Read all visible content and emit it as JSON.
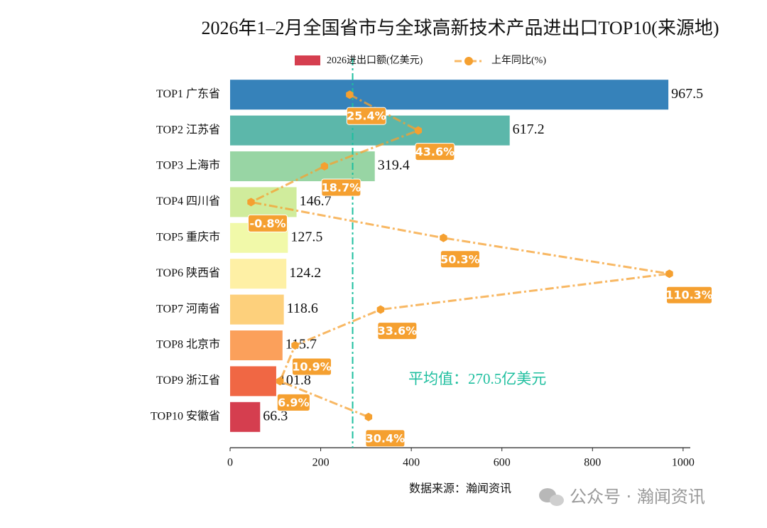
{
  "chart_data": {
    "type": "bar",
    "orientation": "horizontal",
    "title": "2026年1–2月全国省市与全球高新技术产品进出口TOP10(来源地)",
    "categories": [
      "TOP1 广东省",
      "TOP2 江苏省",
      "TOP3 上海市",
      "TOP4 四川省",
      "TOP5 重庆市",
      "TOP6 陕西省",
      "TOP7 河南省",
      "TOP8 北京市",
      "TOP9 浙江省",
      "TOP10 安徽省"
    ],
    "series": [
      {
        "name": "2026进出口额(亿美元)",
        "type": "bar",
        "color": "#d53e4f",
        "colors": [
          "#3682ba",
          "#5cb7aa",
          "#98d5a4",
          "#d0ec9c",
          "#f1f9a9",
          "#fef0a5",
          "#fdd07c",
          "#fba05b",
          "#f06744",
          "#d53e4f"
        ],
        "values": [
          967.5,
          617.2,
          319.4,
          146.7,
          127.5,
          124.2,
          118.6,
          115.7,
          101.8,
          66.3
        ]
      },
      {
        "name": "上年同比(%)",
        "type": "line",
        "axis": "x2",
        "color": "#f5a030",
        "values": [
          25.4,
          43.6,
          18.7,
          -0.8,
          50.3,
          110.3,
          33.6,
          10.9,
          6.9,
          30.4
        ],
        "value_labels": [
          "25.4%",
          "43.6%",
          "18.7%",
          "-0.8%",
          "50.3%",
          "110.3%",
          "33.6%",
          "10.9%",
          "6.9%",
          "30.4%"
        ]
      }
    ],
    "xlim": [
      0,
      1015.9
    ],
    "xticks": [
      0,
      200,
      400,
      600,
      800,
      1000
    ],
    "x2lim": [
      -6.36,
      115.86
    ],
    "average": 270.5,
    "average_color": "#1fbf9f",
    "average_label": "平均值：270.5亿美元",
    "source": "数据来源：瀚闻资讯"
  },
  "watermark": "公众号 · 瀚闻资讯"
}
